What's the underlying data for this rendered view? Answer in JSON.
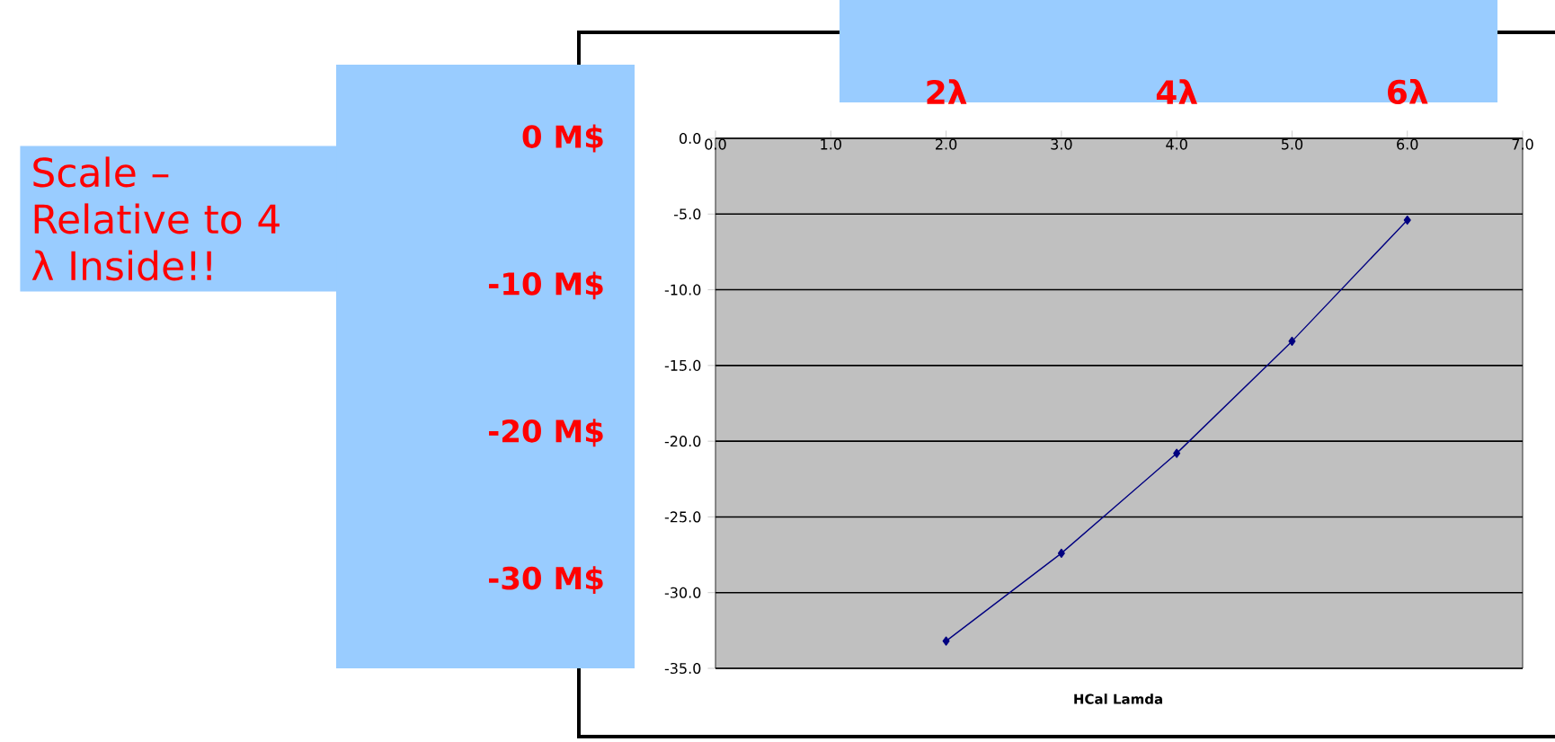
{
  "chart_data": {
    "type": "line",
    "xlabel": "HCal Lamda",
    "annotations": [
      "Scale – Relative to 4 λ Inside!!"
    ],
    "x": [
      2,
      3,
      4,
      5,
      6
    ],
    "series": [
      {
        "color": "#000080",
        "values": [
          -33.2,
          -27.4,
          -20.8,
          -13.4,
          -5.4
        ]
      }
    ],
    "xlim": [
      0,
      7
    ],
    "xticks": [
      {
        "value": 0,
        "label": "0.0"
      },
      {
        "value": 1,
        "label": "1.0"
      },
      {
        "value": 2,
        "label": "2.0"
      },
      {
        "value": 3,
        "label": "3.0"
      },
      {
        "value": 4,
        "label": "4.0"
      },
      {
        "value": 5,
        "label": "5.0"
      },
      {
        "value": 6,
        "label": "6.0"
      },
      {
        "value": 7,
        "label": "7.0"
      }
    ],
    "ylim": [
      -35,
      0
    ],
    "yticks": [
      {
        "value": 0,
        "label": "0.0"
      },
      {
        "value": -5,
        "label": "-5.0"
      },
      {
        "value": -10,
        "label": "-10.0"
      },
      {
        "value": -15,
        "label": "-15.0"
      },
      {
        "value": -20,
        "label": "-20.0"
      },
      {
        "value": -25,
        "label": "-25.0"
      },
      {
        "value": -30,
        "label": "-30.0"
      },
      {
        "value": -35,
        "label": "-35.0"
      }
    ],
    "y2lim": [
      -36,
      0
    ],
    "y2ticks": [
      {
        "value": 0,
        "label": "0 M$"
      },
      {
        "value": -10,
        "label": "-10 M$"
      },
      {
        "value": -20,
        "label": "-20 M$"
      },
      {
        "value": -30,
        "label": "-30 M$"
      }
    ],
    "x2lim": [
      0,
      7
    ],
    "x2ticks": [
      {
        "value": 2,
        "label": "2λ"
      },
      {
        "value": 4,
        "label": "4λ"
      },
      {
        "value": 6,
        "label": "6λ"
      }
    ],
    "grid": "y",
    "marker": "diamond",
    "line_style": "solid"
  }
}
